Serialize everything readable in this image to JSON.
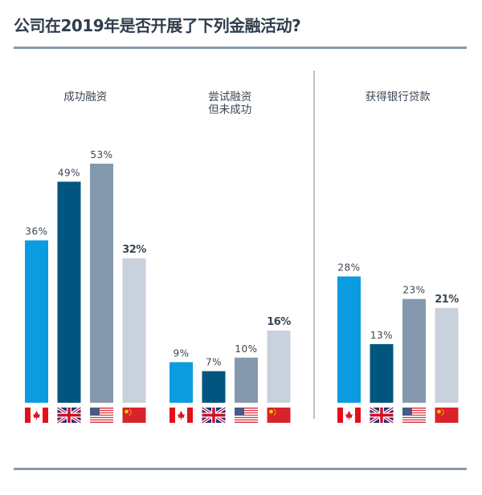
{
  "chart_data": {
    "type": "bar",
    "title": "公司在2019年是否开展了下列金融活动?",
    "countries": [
      "Canada",
      "United Kingdom",
      "United States",
      "China"
    ],
    "flag_icons": [
      "canada-flag-icon",
      "uk-flag-icon",
      "us-flag-icon",
      "china-flag-icon"
    ],
    "colors": [
      "#0b9ce0",
      "#00567f",
      "#8499ad",
      "#c9d1dc"
    ],
    "value_suffix": "%",
    "ylim": [
      0,
      55
    ],
    "grid": false,
    "groups": [
      {
        "label": [
          "成功融资"
        ],
        "values": [
          36,
          49,
          53,
          32
        ]
      },
      {
        "label": [
          "尝试融资",
          "但未成功"
        ],
        "values": [
          9,
          7,
          10,
          16
        ]
      },
      {
        "label": [
          "获得银行贷款"
        ],
        "values": [
          28,
          13,
          23,
          21
        ]
      }
    ]
  }
}
